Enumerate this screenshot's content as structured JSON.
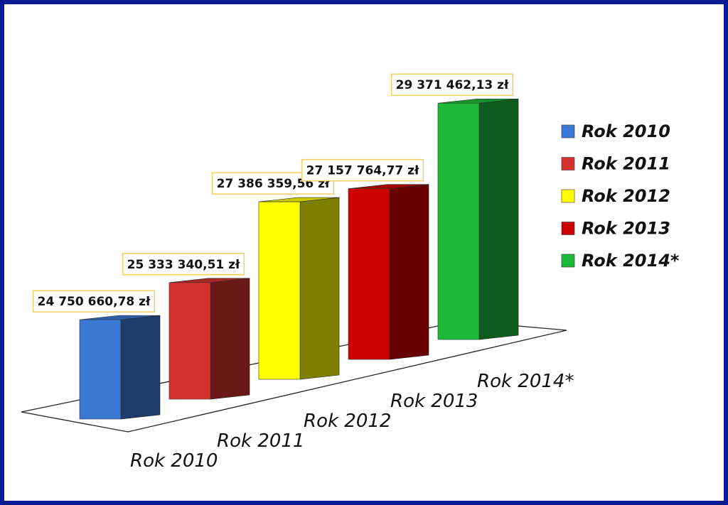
{
  "chart_data": {
    "type": "bar3d",
    "categories": [
      "Rok 2010",
      "Rok 2011",
      "Rok 2012",
      "Rok 2013",
      "Rok 2014*"
    ],
    "values": [
      24750660.78,
      25333340.51,
      27386359.56,
      27157764.77,
      29371462.13
    ],
    "value_labels": [
      "24 750 660,78 zł",
      "25 333 340,51 zł",
      "27 386 359,56 zł",
      "27 157 764,77 zł",
      "29 371 462,13 zł"
    ],
    "colors": [
      "#3a78d4",
      "#d3322e",
      "#ffff00",
      "#cc0000",
      "#1cb83a"
    ],
    "ylim": [
      21400000,
      30000000
    ],
    "legend": "right"
  }
}
